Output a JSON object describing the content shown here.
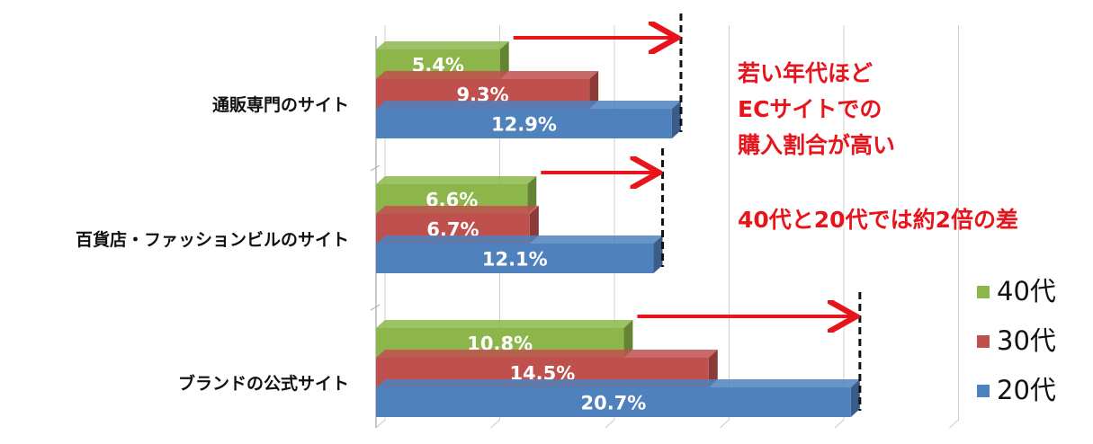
{
  "chart_data": {
    "type": "bar",
    "orientation": "horizontal",
    "categories": [
      "通販専門のサイト",
      "百貨店・ファッションビルのサイト",
      "ブランドの公式サイト"
    ],
    "series": [
      {
        "name": "40代",
        "color": "#8cb64a",
        "values": [
          5.4,
          6.6,
          10.8
        ],
        "labels": [
          "5.4%",
          "6.6%",
          "10.8%"
        ]
      },
      {
        "name": "30代",
        "color": "#c0504d",
        "values": [
          9.3,
          6.7,
          14.5
        ],
        "labels": [
          "9.3%",
          "6.7%",
          "14.5%"
        ]
      },
      {
        "name": "20代",
        "color": "#4f81bd",
        "values": [
          12.9,
          12.1,
          20.7
        ],
        "labels": [
          "12.9%",
          "12.1%",
          "20.7%"
        ]
      }
    ],
    "xlim": [
      0,
      25
    ],
    "grid": true,
    "legend_position": "bottom-right",
    "annotations": [
      {
        "lines": [
          "若い年代ほど",
          "ECサイトでの",
          "購入割合が高い"
        ],
        "color": "#e8141c"
      },
      {
        "lines": [
          "40代と20代では約2倍の差"
        ],
        "color": "#e8141c"
      }
    ]
  }
}
